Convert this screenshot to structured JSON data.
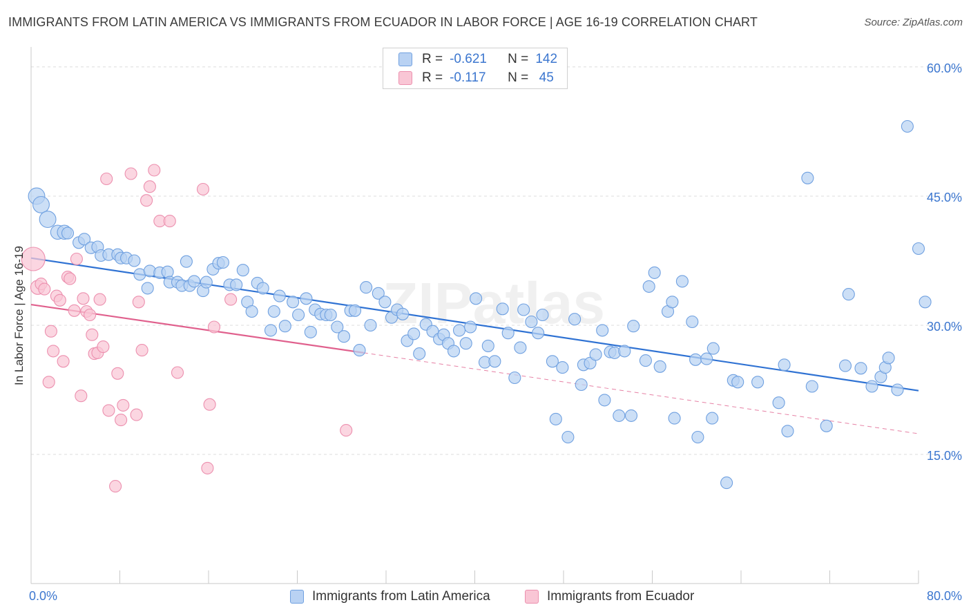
{
  "title": "IMMIGRANTS FROM LATIN AMERICA VS IMMIGRANTS FROM ECUADOR IN LABOR FORCE | AGE 16-19 CORRELATION CHART",
  "source": "Source: ZipAtlas.com",
  "watermark": "ZIPatlas",
  "legend": {
    "r_label": "R =",
    "n_label": "N =",
    "rows": [
      {
        "r": "-0.621",
        "n": "142"
      },
      {
        "r": "-0.117",
        "n": "45"
      }
    ]
  },
  "colors": {
    "blue_fill": "#b9d2f3",
    "blue_stroke": "#6fa0e0",
    "blue_line": "#2f72d3",
    "pink_fill": "#f9c6d5",
    "pink_stroke": "#ec8fae",
    "pink_line": "#e0608d",
    "tick_text": "#3b76cf",
    "grid": "#dcdcdc"
  },
  "chart_data": {
    "type": "scatter",
    "title": "IMMIGRANTS FROM LATIN AMERICA VS IMMIGRANTS FROM ECUADOR IN LABOR FORCE | AGE 16-19 CORRELATION CHART",
    "xlabel": "",
    "ylabel": "In Labor Force | Age 16-19",
    "xlim": [
      0,
      80
    ],
    "ylim": [
      0,
      62
    ],
    "x_tick_labels": [
      "0.0%",
      "80.0%"
    ],
    "y_ticks": [
      15,
      30,
      45,
      60
    ],
    "y_tick_labels": [
      "15.0%",
      "30.0%",
      "45.0%",
      "60.0%"
    ],
    "grid": true,
    "legend_position": "top-center",
    "series": [
      {
        "name": "Immigrants from Latin America",
        "r": -0.621,
        "n": 142,
        "trend": {
          "x": [
            0,
            80
          ],
          "y": [
            37.8,
            22.4
          ],
          "style": "solid"
        },
        "points": [
          [
            0.5,
            45.0,
            1.4
          ],
          [
            0.9,
            44.0,
            1.4
          ],
          [
            1.5,
            42.3,
            1.4
          ],
          [
            2.4,
            40.8,
            1.2
          ],
          [
            3.0,
            40.8,
            1.2
          ],
          [
            3.3,
            40.7,
            1.0
          ],
          [
            4.3,
            39.6,
            1.0
          ],
          [
            4.8,
            40.0,
            1.0
          ],
          [
            5.4,
            39.0,
            1.0
          ],
          [
            6.0,
            39.1,
            1.0
          ],
          [
            6.3,
            38.1,
            1.0
          ],
          [
            7.0,
            38.2,
            1.0
          ],
          [
            7.8,
            38.2,
            1.0
          ],
          [
            8.1,
            37.8,
            1.0
          ],
          [
            8.6,
            37.8,
            1.0
          ],
          [
            9.3,
            37.5,
            1.0
          ],
          [
            9.8,
            35.9,
            1.0
          ],
          [
            10.5,
            34.3,
            1.0
          ],
          [
            10.7,
            36.3,
            1.0
          ],
          [
            11.6,
            36.1,
            1.0
          ],
          [
            12.3,
            36.2,
            1.0
          ],
          [
            12.5,
            35.0,
            1.0
          ],
          [
            13.2,
            35.0,
            1.0
          ],
          [
            13.6,
            34.6,
            1.0
          ],
          [
            14.0,
            37.4,
            1.0
          ],
          [
            14.3,
            34.6,
            1.0
          ],
          [
            14.7,
            35.1,
            1.0
          ],
          [
            15.5,
            34.0,
            1.0
          ],
          [
            15.8,
            35.0,
            1.0
          ],
          [
            16.4,
            36.5,
            1.0
          ],
          [
            16.9,
            37.2,
            1.0
          ],
          [
            17.3,
            37.3,
            1.0
          ],
          [
            17.9,
            34.7,
            1.0
          ],
          [
            18.5,
            34.7,
            1.0
          ],
          [
            19.1,
            36.4,
            1.0
          ],
          [
            19.5,
            32.7,
            1.0
          ],
          [
            19.9,
            31.6,
            1.0
          ],
          [
            20.4,
            34.9,
            1.0
          ],
          [
            20.9,
            34.3,
            1.0
          ],
          [
            21.6,
            29.4,
            1.0
          ],
          [
            21.9,
            31.6,
            1.0
          ],
          [
            22.4,
            33.4,
            1.0
          ],
          [
            22.9,
            29.9,
            1.0
          ],
          [
            23.6,
            32.7,
            1.0
          ],
          [
            24.1,
            31.2,
            1.0
          ],
          [
            24.8,
            33.1,
            1.0
          ],
          [
            25.2,
            29.2,
            1.0
          ],
          [
            25.6,
            31.8,
            1.0
          ],
          [
            26.1,
            31.3,
            1.0
          ],
          [
            26.6,
            31.2,
            1.0
          ],
          [
            27.0,
            31.2,
            1.0
          ],
          [
            27.6,
            29.8,
            1.0
          ],
          [
            28.2,
            28.7,
            1.0
          ],
          [
            28.8,
            31.7,
            1.0
          ],
          [
            29.2,
            31.7,
            1.0
          ],
          [
            29.6,
            27.1,
            1.0
          ],
          [
            30.2,
            34.4,
            1.0
          ],
          [
            30.6,
            30.0,
            1.0
          ],
          [
            31.3,
            33.7,
            1.0
          ],
          [
            31.9,
            32.7,
            1.0
          ],
          [
            32.5,
            30.9,
            1.0
          ],
          [
            33.0,
            31.8,
            1.0
          ],
          [
            33.5,
            31.3,
            1.0
          ],
          [
            33.9,
            28.2,
            1.0
          ],
          [
            34.5,
            29.0,
            1.0
          ],
          [
            35.0,
            26.7,
            1.0
          ],
          [
            35.6,
            30.1,
            1.0
          ],
          [
            36.2,
            29.3,
            1.0
          ],
          [
            36.8,
            28.4,
            1.0
          ],
          [
            37.2,
            28.9,
            1.0
          ],
          [
            37.6,
            27.9,
            1.0
          ],
          [
            38.1,
            27.0,
            1.0
          ],
          [
            38.6,
            29.4,
            1.0
          ],
          [
            39.2,
            27.9,
            1.0
          ],
          [
            39.6,
            29.8,
            1.0
          ],
          [
            40.1,
            33.1,
            1.0
          ],
          [
            40.9,
            25.7,
            1.0
          ],
          [
            41.2,
            27.6,
            1.0
          ],
          [
            41.8,
            25.8,
            1.0
          ],
          [
            42.5,
            31.9,
            1.0
          ],
          [
            43.0,
            29.1,
            1.0
          ],
          [
            43.6,
            23.9,
            1.0
          ],
          [
            44.1,
            27.4,
            1.0
          ],
          [
            44.4,
            31.8,
            1.0
          ],
          [
            45.1,
            30.4,
            1.0
          ],
          [
            45.7,
            29.1,
            1.0
          ],
          [
            46.1,
            31.2,
            1.0
          ],
          [
            47.0,
            25.8,
            1.0
          ],
          [
            47.3,
            19.1,
            1.0
          ],
          [
            47.9,
            25.1,
            1.0
          ],
          [
            48.4,
            17.0,
            1.0
          ],
          [
            49.0,
            30.7,
            1.0
          ],
          [
            49.6,
            23.1,
            1.0
          ],
          [
            49.8,
            25.4,
            1.0
          ],
          [
            50.4,
            25.6,
            1.0
          ],
          [
            50.9,
            26.6,
            1.0
          ],
          [
            51.5,
            29.4,
            1.0
          ],
          [
            51.7,
            21.3,
            1.0
          ],
          [
            52.2,
            26.9,
            1.0
          ],
          [
            52.6,
            26.8,
            1.0
          ],
          [
            53.0,
            19.5,
            1.0
          ],
          [
            53.5,
            27.0,
            1.0
          ],
          [
            54.1,
            19.5,
            1.0
          ],
          [
            54.3,
            29.9,
            1.0
          ],
          [
            55.4,
            25.9,
            1.0
          ],
          [
            55.7,
            34.5,
            1.0
          ],
          [
            56.2,
            36.1,
            1.0
          ],
          [
            56.7,
            25.2,
            1.0
          ],
          [
            57.4,
            31.6,
            1.0
          ],
          [
            57.8,
            32.7,
            1.0
          ],
          [
            58.0,
            19.2,
            1.0
          ],
          [
            58.7,
            35.1,
            1.0
          ],
          [
            59.6,
            30.4,
            1.0
          ],
          [
            59.9,
            26.0,
            1.0
          ],
          [
            60.1,
            17.0,
            1.0
          ],
          [
            60.9,
            26.1,
            1.0
          ],
          [
            61.4,
            19.2,
            1.0
          ],
          [
            61.5,
            27.3,
            1.0
          ],
          [
            62.7,
            11.7,
            1.0
          ],
          [
            63.3,
            23.6,
            1.0
          ],
          [
            63.7,
            23.4,
            1.0
          ],
          [
            65.5,
            23.4,
            1.0
          ],
          [
            67.4,
            21.0,
            1.0
          ],
          [
            67.9,
            25.4,
            1.0
          ],
          [
            68.2,
            17.7,
            1.0
          ],
          [
            70.0,
            47.1,
            1.0
          ],
          [
            70.4,
            22.9,
            1.0
          ],
          [
            71.7,
            18.3,
            1.0
          ],
          [
            73.4,
            25.3,
            1.0
          ],
          [
            73.7,
            33.6,
            1.0
          ],
          [
            74.8,
            25.0,
            1.0
          ],
          [
            75.8,
            22.9,
            1.0
          ],
          [
            76.6,
            24.0,
            1.0
          ],
          [
            77.0,
            25.1,
            1.0
          ],
          [
            77.3,
            26.2,
            1.0
          ],
          [
            78.1,
            22.5,
            1.0
          ],
          [
            79.0,
            53.1,
            1.0
          ],
          [
            80.0,
            38.9,
            1.0
          ],
          [
            80.6,
            32.7,
            1.0
          ]
        ]
      },
      {
        "name": "Immigrants from Ecuador",
        "r": -0.117,
        "n": 45,
        "trend": {
          "x": [
            0,
            30
          ],
          "y": [
            32.4,
            26.8
          ],
          "style": "solid",
          "extension": {
            "x": [
              30,
              80
            ],
            "y": [
              26.8,
              17.4
            ],
            "style": "dashed"
          }
        },
        "points": [
          [
            0.2,
            37.7,
            2.0
          ],
          [
            0.6,
            34.4,
            1.2
          ],
          [
            0.9,
            34.8,
            1.0
          ],
          [
            1.2,
            34.2,
            1.0
          ],
          [
            1.6,
            23.4,
            1.0
          ],
          [
            1.8,
            29.3,
            1.0
          ],
          [
            2.0,
            27.0,
            1.0
          ],
          [
            2.3,
            33.4,
            1.0
          ],
          [
            2.6,
            32.9,
            1.0
          ],
          [
            2.9,
            25.8,
            1.0
          ],
          [
            3.3,
            35.6,
            1.0
          ],
          [
            3.5,
            35.4,
            1.0
          ],
          [
            3.9,
            31.7,
            1.0
          ],
          [
            4.1,
            37.7,
            1.0
          ],
          [
            4.5,
            21.8,
            1.0
          ],
          [
            4.7,
            33.1,
            1.0
          ],
          [
            5.0,
            31.6,
            1.0
          ],
          [
            5.3,
            31.2,
            1.0
          ],
          [
            5.5,
            28.9,
            1.0
          ],
          [
            5.7,
            26.7,
            1.0
          ],
          [
            6.0,
            26.8,
            1.0
          ],
          [
            6.2,
            33.0,
            1.0
          ],
          [
            6.5,
            27.5,
            1.0
          ],
          [
            6.8,
            47.0,
            1.0
          ],
          [
            7.0,
            20.1,
            1.0
          ],
          [
            7.6,
            11.3,
            1.0
          ],
          [
            7.8,
            24.4,
            1.0
          ],
          [
            8.1,
            19.0,
            1.0
          ],
          [
            8.3,
            20.7,
            1.0
          ],
          [
            9.0,
            47.6,
            1.0
          ],
          [
            9.5,
            19.6,
            1.0
          ],
          [
            9.7,
            32.7,
            1.0
          ],
          [
            10.0,
            27.1,
            1.0
          ],
          [
            10.4,
            44.5,
            1.0
          ],
          [
            10.7,
            46.1,
            1.0
          ],
          [
            11.1,
            48.0,
            1.0
          ],
          [
            11.6,
            42.1,
            1.0
          ],
          [
            12.5,
            42.1,
            1.0
          ],
          [
            13.2,
            24.5,
            1.0
          ],
          [
            15.5,
            45.8,
            1.0
          ],
          [
            15.9,
            13.4,
            1.0
          ],
          [
            16.1,
            20.8,
            1.0
          ],
          [
            16.5,
            29.8,
            1.0
          ],
          [
            18.0,
            33.0,
            1.0
          ],
          [
            28.4,
            17.8,
            1.0
          ]
        ]
      }
    ]
  }
}
